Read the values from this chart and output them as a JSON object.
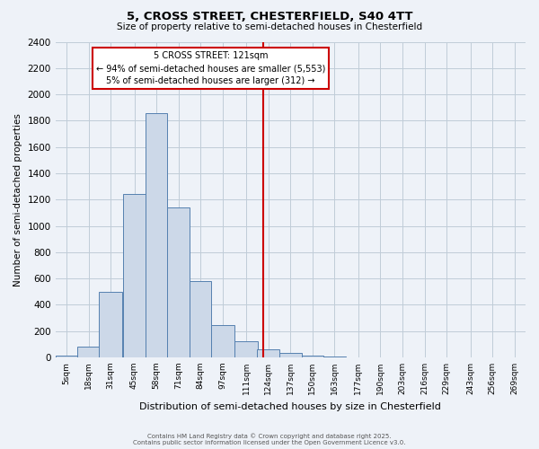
{
  "title_line1": "5, CROSS STREET, CHESTERFIELD, S40 4TT",
  "title_line2": "Size of property relative to semi-detached houses in Chesterfield",
  "xlabel": "Distribution of semi-detached houses by size in Chesterfield",
  "ylabel": "Number of semi-detached properties",
  "bin_labels": [
    "5sqm",
    "18sqm",
    "31sqm",
    "45sqm",
    "58sqm",
    "71sqm",
    "84sqm",
    "97sqm",
    "111sqm",
    "124sqm",
    "137sqm",
    "150sqm",
    "163sqm",
    "177sqm",
    "190sqm",
    "203sqm",
    "216sqm",
    "229sqm",
    "243sqm",
    "256sqm",
    "269sqm"
  ],
  "bin_centers": [
    5,
    18,
    31,
    45,
    58,
    71,
    84,
    97,
    111,
    124,
    137,
    150,
    163,
    177,
    190,
    203,
    216,
    229,
    243,
    256,
    269
  ],
  "bar_heights": [
    10,
    80,
    500,
    1240,
    1860,
    1140,
    580,
    245,
    120,
    60,
    35,
    15,
    5,
    0,
    0,
    0,
    0,
    0,
    0,
    0,
    0
  ],
  "bar_face_color": "#ccd8e8",
  "bar_edge_color": "#5580b0",
  "vline_x": 121,
  "vline_color": "#cc0000",
  "ylim": [
    0,
    2400
  ],
  "yticks": [
    0,
    200,
    400,
    600,
    800,
    1000,
    1200,
    1400,
    1600,
    1800,
    2000,
    2200,
    2400
  ],
  "annotation_title": "5 CROSS STREET: 121sqm",
  "annotation_line2": "← 94% of semi-detached houses are smaller (5,553)",
  "annotation_line3": "5% of semi-detached houses are larger (312) →",
  "annotation_box_color": "#cc0000",
  "grid_color": "#c0ccd8",
  "bg_color": "#eef2f8",
  "footnote1": "Contains HM Land Registry data © Crown copyright and database right 2025.",
  "footnote2": "Contains public sector information licensed under the Open Government Licence v3.0."
}
